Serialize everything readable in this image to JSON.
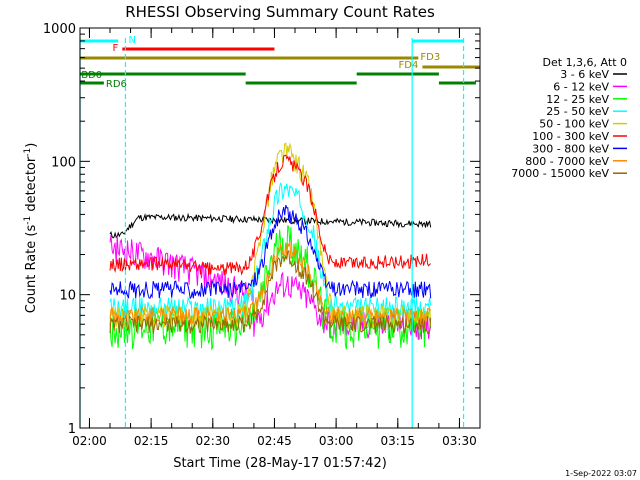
{
  "chart_data": {
    "type": "line",
    "title": "RHESSI Observing Summary Count Rates",
    "xlabel": "Start Time (28-May-17 01:57:42)",
    "ylabel_prefix": "Count Rate (s",
    "ylabel_sup1": "-1",
    "ylabel_mid": " detector",
    "ylabel_sup2": "-1",
    "ylabel_suffix": ")",
    "footer_stamp": "1-Sep-2022 03:07",
    "y_scale": "log",
    "ylim": [
      1,
      1000
    ],
    "xlim": [
      "01:57:42",
      "03:35:00"
    ],
    "x_ticks": [
      "02:00",
      "02:15",
      "02:30",
      "02:45",
      "03:00",
      "03:15",
      "03:30"
    ],
    "y_ticks": [
      "1",
      "10",
      "100",
      "1000"
    ],
    "grid": false,
    "legend_position": "right",
    "legend_header": "Det 1,3,6, Att 0",
    "series": [
      {
        "name": "3 - 6 keV",
        "color": "#000000"
      },
      {
        "name": "6 - 12 keV",
        "color": "#ff00ff"
      },
      {
        "name": "12 - 25 keV",
        "color": "#00ff00"
      },
      {
        "name": "25 - 50 keV",
        "color": "#00ffff"
      },
      {
        "name": "50 - 100 keV",
        "color": "#d4cc00"
      },
      {
        "name": "100 - 300 keV",
        "color": "#ff0000"
      },
      {
        "name": "300 - 800 keV",
        "color": "#0000ff"
      },
      {
        "name": "800 - 7000 keV",
        "color": "#ff8800"
      },
      {
        "name": "7000 - 15000 keV",
        "color": "#996600"
      }
    ],
    "state_bars": [
      {
        "label": "N",
        "color": "#00ffff",
        "segments": [
          [
            "01:57:42",
            "02:07:00"
          ],
          [
            "03:18:30",
            "03:31:00"
          ]
        ]
      },
      {
        "label": "F",
        "color": "#ff0000",
        "segments": [
          [
            "02:08:00",
            "02:45:00"
          ]
        ]
      },
      {
        "label": "FD3",
        "color": "#998800",
        "segments": [
          [
            "01:57:42",
            "03:20:00"
          ]
        ]
      },
      {
        "label": "FD4",
        "color": "#998800",
        "segments": [
          [
            "03:21:00",
            "03:35:00"
          ]
        ]
      },
      {
        "label": "BD0",
        "color": "#008000",
        "segments": [
          [
            "01:57:42",
            "02:38:00"
          ],
          [
            "03:05:00",
            "03:25:00"
          ]
        ]
      },
      {
        "label": "RD6",
        "color": "#008000",
        "segments": [
          [
            "01:57:42",
            "02:03:30"
          ],
          [
            "02:38:00",
            "03:05:00"
          ],
          [
            "03:25:00",
            "03:34:00"
          ]
        ]
      }
    ],
    "vlines": [
      {
        "time": "01:57:42",
        "color": "#00ffff",
        "style": "solid"
      },
      {
        "time": "02:08:45",
        "color": "#00ffff",
        "style": "dashed"
      },
      {
        "time": "03:18:30",
        "color": "#00ffff",
        "style": "solid"
      },
      {
        "time": "03:31:00",
        "color": "#00ffff",
        "style": "dashed"
      }
    ],
    "data_start": "02:05:00",
    "data_end": "03:23:00"
  }
}
